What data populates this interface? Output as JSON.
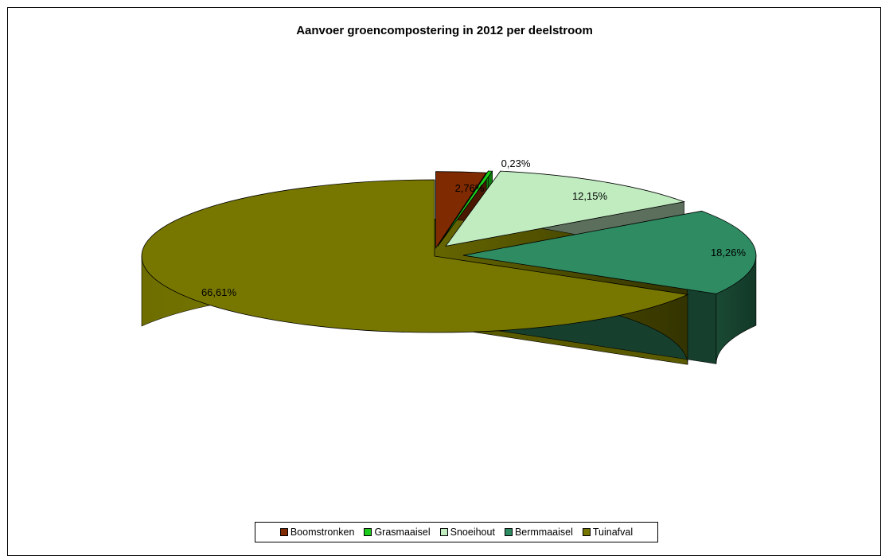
{
  "chart_data": {
    "type": "pie",
    "style": "3d-exploded",
    "title": "Aanvoer groencompostering in 2012 per deelstroom",
    "slices": [
      {
        "name": "Boomstronken",
        "value": 2.76,
        "label": "2,76%",
        "color": "#7f2a00",
        "side_color": "#4a1800"
      },
      {
        "name": "Grasmaaisel",
        "value": 0.23,
        "label": "0,23%",
        "color": "#1ccc1c",
        "side_color": "#0f7a0f"
      },
      {
        "name": "Snoeihout",
        "value": 12.15,
        "label": "12,15%",
        "color": "#c0ecc0",
        "side_color": "#5c6f5c"
      },
      {
        "name": "Bermmaaisel",
        "value": 18.26,
        "label": "18,26%",
        "color": "#2e8b62",
        "side_color": "#163f2d"
      },
      {
        "name": "Tuinafval",
        "value": 66.61,
        "label": "66,61%",
        "color": "#777700",
        "side_color": "#5a5a00"
      }
    ],
    "legend_position": "bottom"
  }
}
